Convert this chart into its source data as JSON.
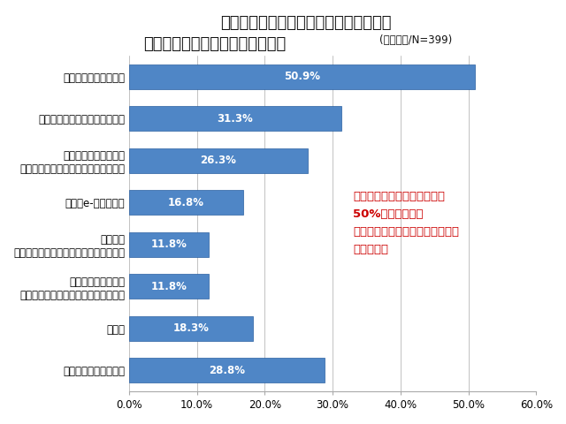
{
  "title_line1": "あなたが知っている運転支援システムを",
  "title_line2": "搭載している車を教えてください",
  "title_suffix": "(複数回答/N=399)",
  "categories": [
    "スバル「アイサイト」",
    "ダイハツ「スマートアシスト」",
    "トヨタ「衝突回避支援\nプリクラッシュセーフティシステム」",
    "三菱「e-アシスト」",
    "レクサス\n「プリクラッシュセーフティシステム」",
    "フォルクスワーゲン\n「シティエマージェンシーブレーキ」",
    "その他",
    "知っているものはない"
  ],
  "values": [
    50.9,
    31.3,
    26.3,
    16.8,
    11.8,
    11.8,
    18.3,
    28.8
  ],
  "bar_color": "#4f86c6",
  "bar_edge_color": "#2a5fa0",
  "xlim": [
    0,
    60
  ],
  "xtick_values": [
    0,
    10,
    20,
    30,
    40,
    50,
    60
  ],
  "xtick_labels": [
    "0.0%",
    "10.0%",
    "20.0%",
    "30.0%",
    "40.0%",
    "50.0%",
    "60.0%"
  ],
  "annotation_text": "スバル「アイサイト」以外は\n50%を切る結果に\nまだまだ漠然としたイメージの方\nが多いよう",
  "annotation_color": "#cc0000",
  "background_color": "#ffffff",
  "title_fontsize": 13,
  "label_fontsize": 8.5,
  "value_fontsize": 8.5,
  "annotation_fontsize": 9.5
}
